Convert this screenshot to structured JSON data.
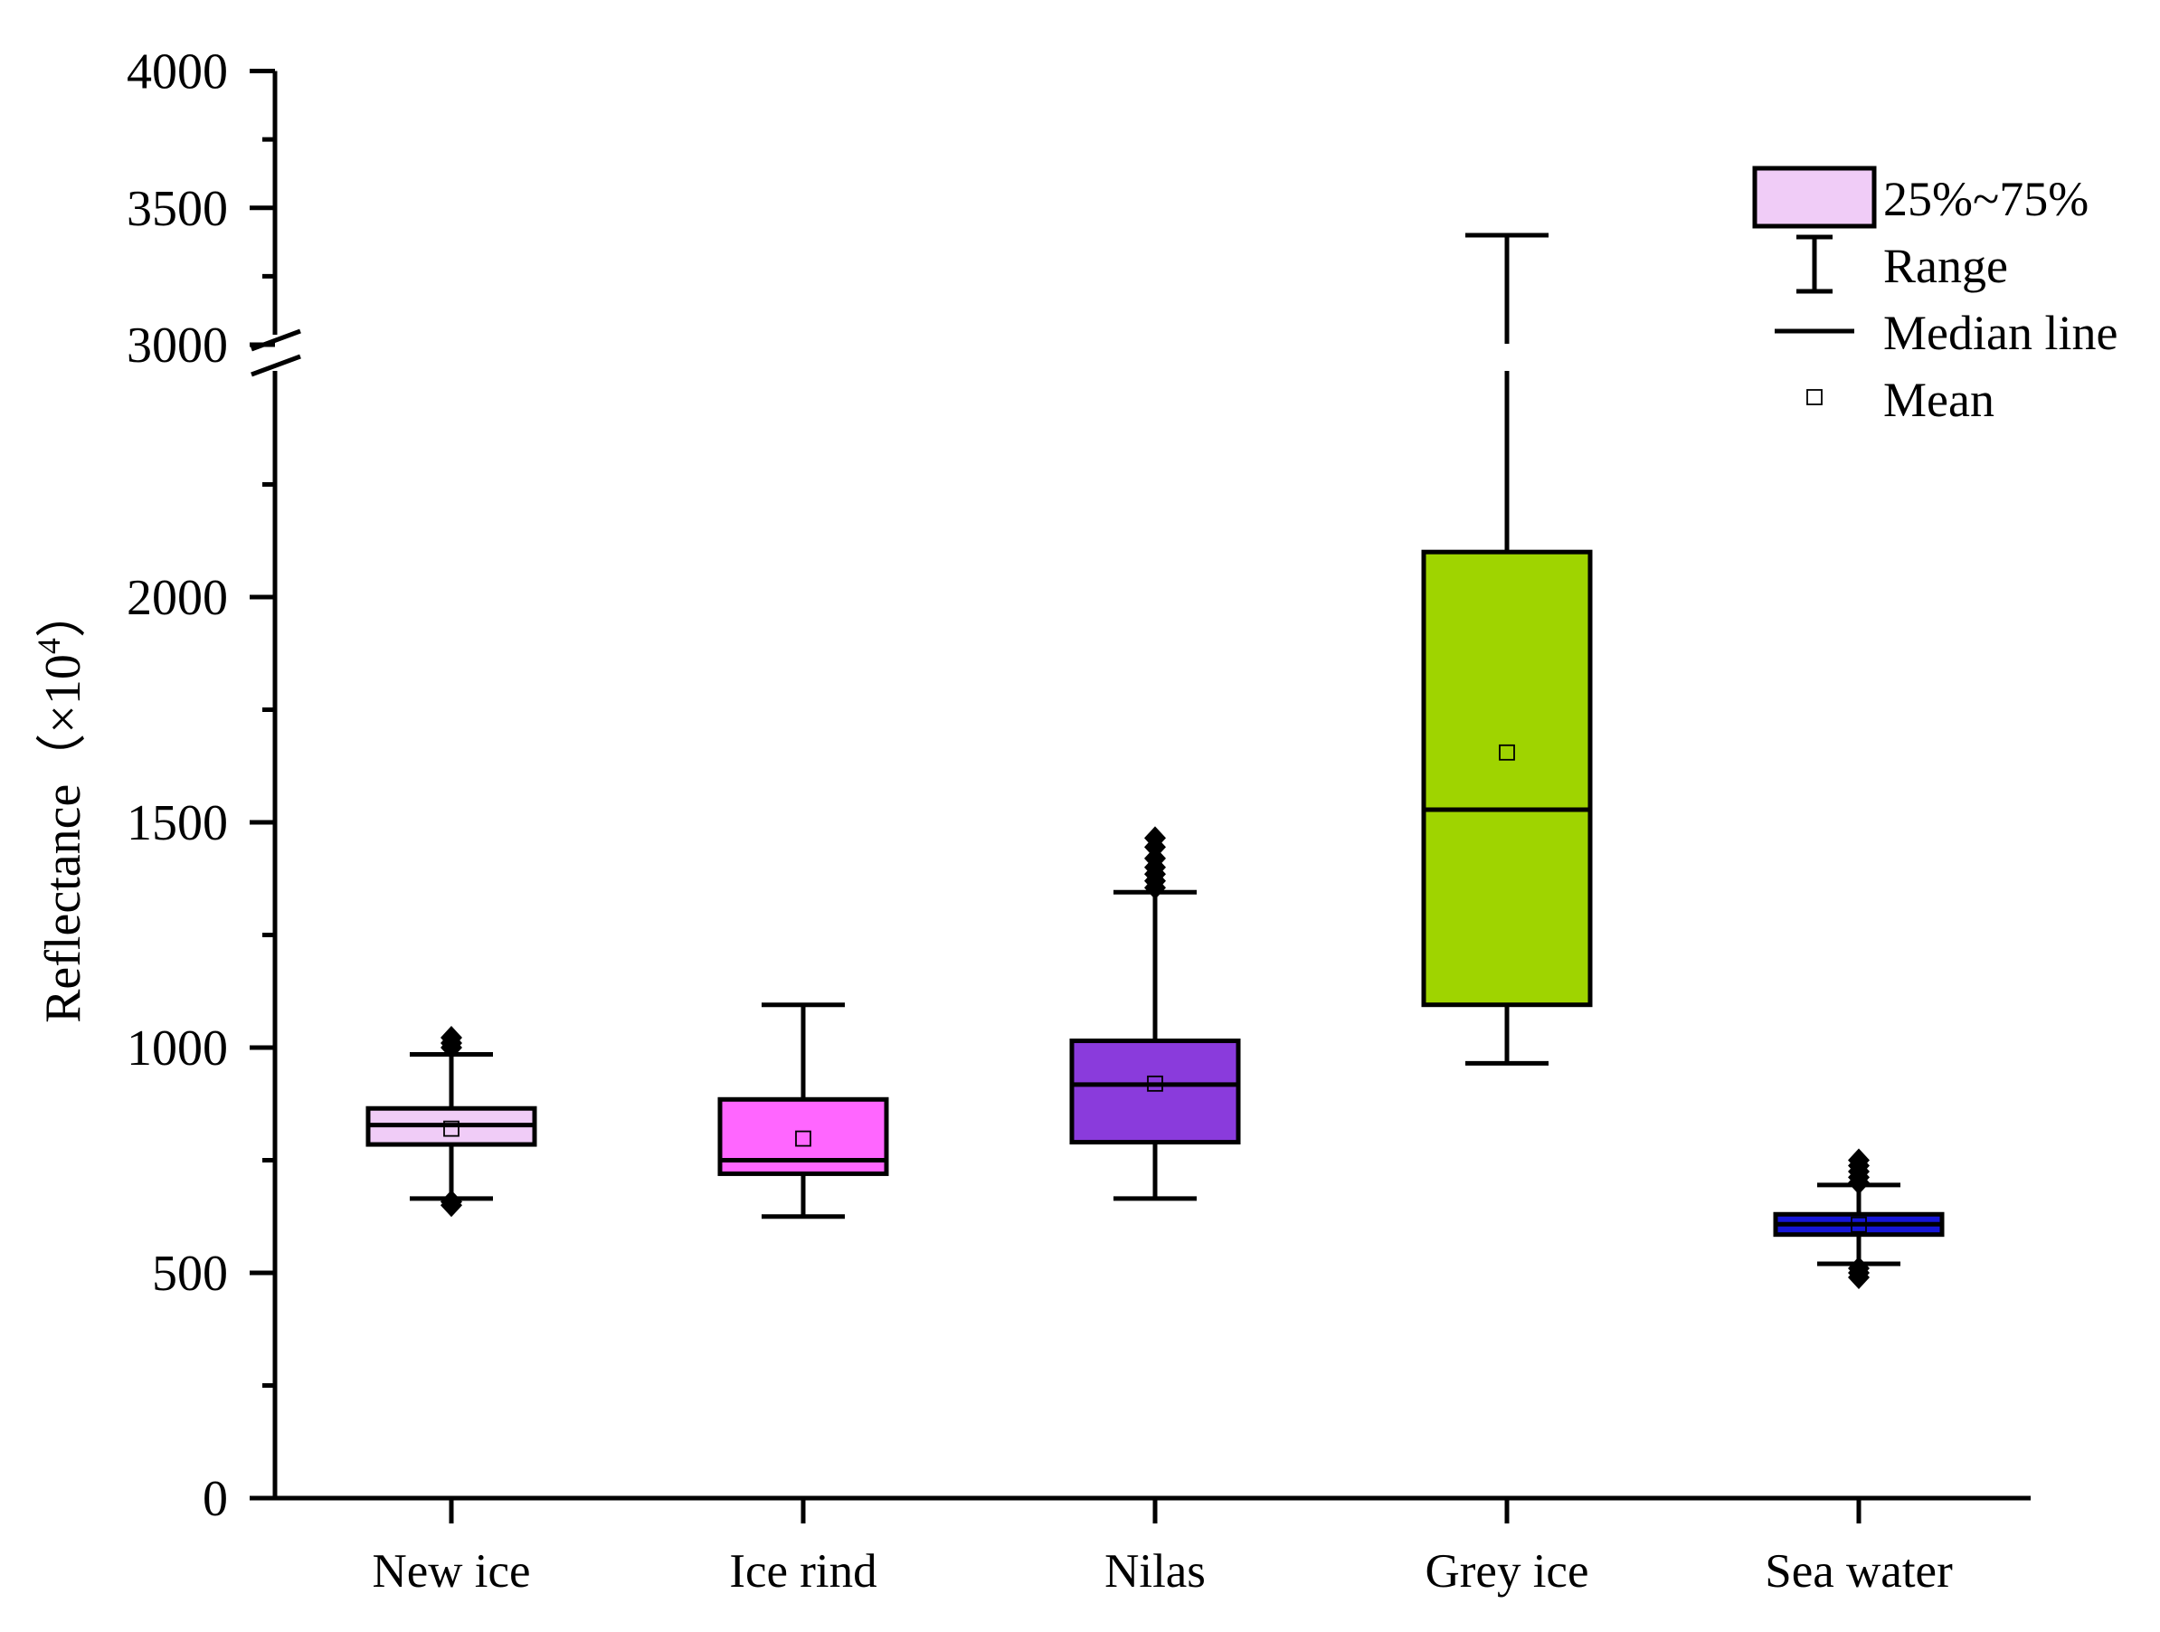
{
  "chart_data": {
    "type": "box",
    "title": "",
    "xlabel": "",
    "ylabel": {
      "main": "Reflectance",
      "open_paren": "（",
      "times": "×",
      "base": "10",
      "exponent": "4",
      "close_paren": "）"
    },
    "ylim": [
      0,
      4000
    ],
    "y_axis_break": [
      2400,
      3000
    ],
    "y_ticks": [
      {
        "value": 0,
        "label": "0"
      },
      {
        "value": 500,
        "label": "500"
      },
      {
        "value": 1000,
        "label": "1000"
      },
      {
        "value": 1500,
        "label": "1500"
      },
      {
        "value": 2000,
        "label": "2000"
      },
      {
        "value": 3000,
        "label": "3000"
      },
      {
        "value": 3500,
        "label": "3500"
      },
      {
        "value": 4000,
        "label": "4000"
      }
    ],
    "y_minor_ticks": [
      250,
      750,
      1250,
      1750,
      2250,
      3250,
      3750
    ],
    "categories": [
      "New ice",
      "Ice rind",
      "Nilas",
      "Grey ice",
      "Sea water"
    ],
    "series": [
      {
        "name": "New ice",
        "color": "#f0ccf7",
        "whisker_low": 665,
        "q1": 785,
        "median": 828,
        "q3": 865,
        "whisker_high": 985,
        "mean": 820,
        "outliers": [
          650,
          658,
          1000,
          1010,
          1022
        ]
      },
      {
        "name": "Ice rind",
        "color": "#ff66ff",
        "whisker_low": 625,
        "q1": 720,
        "median": 750,
        "q3": 885,
        "whisker_high": 1095,
        "mean": 798,
        "outliers": []
      },
      {
        "name": "Nilas",
        "color": "#8a3bdc",
        "whisker_low": 665,
        "q1": 790,
        "median": 918,
        "q3": 1015,
        "whisker_high": 1345,
        "mean": 920,
        "outliers": [
          1355,
          1370,
          1385,
          1400,
          1420,
          1445,
          1465
        ]
      },
      {
        "name": "Grey ice",
        "color": "#9fd400",
        "whisker_low": 965,
        "q1": 1095,
        "median": 1528,
        "q3": 2100,
        "whisker_high": 3400,
        "mean": 1655,
        "outliers": []
      },
      {
        "name": "Sea water",
        "color": "#1616d8",
        "whisker_low": 520,
        "q1": 585,
        "median": 608,
        "q3": 630,
        "whisker_high": 695,
        "mean": 607,
        "outliers": [
          490,
          500,
          510,
          700,
          712,
          725,
          738,
          750
        ]
      }
    ],
    "legend": {
      "position": "top-right",
      "items": [
        {
          "key": "box",
          "label": "25%~75%",
          "color": "#f0ccf7"
        },
        {
          "key": "range",
          "label": "Range"
        },
        {
          "key": "median",
          "label": "Median line"
        },
        {
          "key": "mean",
          "label": "Mean"
        }
      ]
    }
  }
}
